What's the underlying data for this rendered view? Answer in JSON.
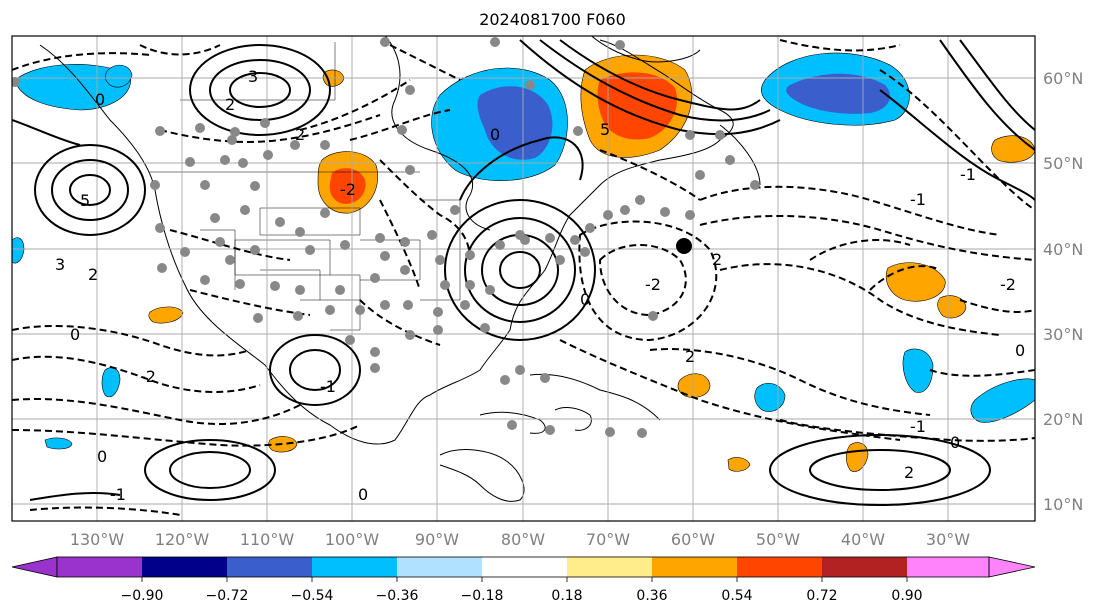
{
  "title": "2024081700 F060",
  "map": {
    "lon_labels": [
      "130°W",
      "120°W",
      "110°W",
      "100°W",
      "90°W",
      "80°W",
      "70°W",
      "60°W",
      "50°W",
      "40°W",
      "30°W"
    ],
    "lat_labels": [
      "60°N",
      "50°N",
      "40°N",
      "30°N",
      "20°N",
      "10°N"
    ],
    "contour_labels": [
      "3",
      "2",
      "0",
      "2",
      "-2",
      "0",
      "5",
      "-2",
      "-1",
      "-2",
      "2",
      "-1",
      "0",
      "-2",
      "0",
      "-1",
      "0",
      "5",
      "3",
      "2",
      "2",
      "0",
      "-1",
      "0",
      "-1",
      "0",
      "2"
    ],
    "marker": {
      "lon": -60,
      "lat": 40.5
    }
  },
  "colorbar": {
    "ticks": [
      "−0.90",
      "−0.72",
      "−0.54",
      "−0.36",
      "−0.18",
      "0.18",
      "0.36",
      "0.54",
      "0.72",
      "0.90"
    ],
    "colors": [
      "#9a32cd",
      "#00008b",
      "#3a5fcd",
      "#00bfff",
      "#b0e2ff",
      "#ffffff",
      "#ffec8b",
      "#ffa500",
      "#ff4500",
      "#b22222",
      "#ff83fa"
    ]
  },
  "shading": {
    "positive": "#ffa500",
    "positive_strong": "#ff4500",
    "negative": "#00bfff",
    "negative_strong": "#3a5fcd"
  }
}
